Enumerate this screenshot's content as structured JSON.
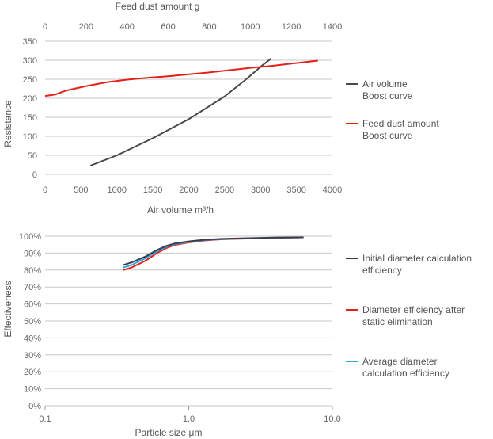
{
  "chart_data": [
    {
      "type": "line",
      "top_xlabel": "Feed dust amount g",
      "xlabel": "Air volume m³/h",
      "ylabel": "Resistance",
      "xlim": [
        0,
        4000
      ],
      "top_xlim": [
        0,
        1400
      ],
      "ylim": [
        0,
        350
      ],
      "x_ticks": [
        "0",
        "500",
        "1000",
        "1500",
        "2000",
        "2500",
        "3000",
        "3500",
        "4000"
      ],
      "top_x_ticks": [
        "0",
        "200",
        "400",
        "600",
        "800",
        "1000",
        "1200",
        "1400"
      ],
      "y_ticks": [
        "0",
        "50",
        "100",
        "150",
        "200",
        "250",
        "300",
        "350"
      ],
      "grid": true,
      "legend": "right",
      "series": [
        {
          "name": "Air volume Boost curve",
          "name_lines": [
            "Air volume",
            "Boost curve"
          ],
          "color": "#4a4a4a",
          "axis": "bottom",
          "x": [
            630,
            1000,
            1500,
            2000,
            2500,
            2800,
            3000,
            3150
          ],
          "y": [
            23,
            50,
            95,
            145,
            205,
            250,
            283,
            305
          ]
        },
        {
          "name": "Feed dust amount Boost curve",
          "name_lines": [
            "Feed dust amount",
            "Boost curve"
          ],
          "color": "#e32119",
          "axis": "top",
          "x": [
            0,
            50,
            100,
            200,
            300,
            400,
            500,
            600,
            700,
            800,
            900,
            1000,
            1100,
            1200,
            1300,
            1330
          ],
          "y": [
            206,
            210,
            220,
            232,
            242,
            249,
            254,
            258,
            263,
            268,
            274,
            280,
            285,
            291,
            297,
            299
          ]
        }
      ]
    },
    {
      "type": "line",
      "xlabel": "Particle size μm",
      "ylabel": "Effectiveness",
      "xscale": "log",
      "xlim": [
        0.1,
        10.0
      ],
      "ylim": [
        0,
        100
      ],
      "x_ticks": [
        "0.1",
        "1.0",
        "10.0"
      ],
      "y_ticks": [
        "0%",
        "10%",
        "20%",
        "30%",
        "40%",
        "50%",
        "60%",
        "70%",
        "80%",
        "90%",
        "100%"
      ],
      "grid": true,
      "legend": "right",
      "series": [
        {
          "name": "Diameter efficiency after static elimination",
          "name_lines": [
            "Diameter efficiency after",
            "static elimination"
          ],
          "color": "#e32119",
          "x": [
            0.35,
            0.4,
            0.5,
            0.6,
            0.7,
            0.8,
            1.0,
            1.3,
            1.7,
            2.5,
            4.0,
            6.3
          ],
          "y": [
            80,
            81.5,
            85.5,
            90,
            93,
            94.8,
            96.3,
            97.5,
            98.2,
            98.6,
            99.0,
            99.3
          ]
        },
        {
          "name": "Average diameter calculation efficiency",
          "name_lines": [
            "Average diameter",
            "calculation efficiency"
          ],
          "color": "#29a8e0",
          "x": [
            0.35,
            0.4,
            0.5,
            0.6,
            0.7,
            0.8,
            1.0,
            1.3,
            1.7,
            2.5,
            4.0,
            6.3
          ],
          "y": [
            81.5,
            83,
            87,
            91,
            93.8,
            95.3,
            96.6,
            97.7,
            98.3,
            98.7,
            99.1,
            99.3
          ]
        },
        {
          "name": "Initial diameter calculation efficiency",
          "name_lines": [
            "Initial diameter calculation",
            "efficiency"
          ],
          "color": "#3c3c4a",
          "x": [
            0.35,
            0.4,
            0.5,
            0.6,
            0.7,
            0.8,
            1.0,
            1.3,
            1.7,
            2.5,
            4.0,
            6.3
          ],
          "y": [
            83,
            84.5,
            88,
            91.8,
            94.3,
            95.7,
            96.9,
            97.9,
            98.4,
            98.8,
            99.2,
            99.3
          ]
        }
      ],
      "legend_order": [
        2,
        0,
        1
      ]
    }
  ]
}
